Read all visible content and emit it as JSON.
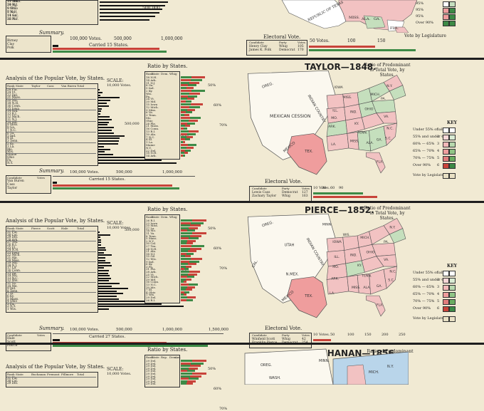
{
  "sections": [
    {
      "id": "polk",
      "heading": "",
      "state_rows": [
        "19 Md.",
        "10 N.J.",
        "9 N.C.",
        "8 Va.",
        "14 Ga.",
        "26 Pa.",
        "17 Tenn.",
        "24 Ky.",
        "9 Ohio",
        "7 N.H.",
        "11 S.C.",
        "12 N.Y."
      ],
      "scale_ticks": [
        "500,000"
      ],
      "summary_label": "Summary.",
      "summary_rows": [
        "Birney",
        "Clay",
        "Polk"
      ],
      "summary_ticks": [
        "100,000 Votes.",
        "500,000",
        "1,000,000"
      ],
      "summary_note": "Carried 15 States.",
      "electoral_label": "Electoral Vote.",
      "electoral_header": [
        "Candidate",
        "Party",
        "Votes"
      ],
      "electoral_rows": [
        [
          "Henry Clay",
          "Whig",
          "105"
        ],
        [
          "James K. Polk",
          "Democrat",
          "170"
        ]
      ],
      "electoral_ticks": [
        "50 Votes.",
        "100",
        "150"
      ],
      "key_title": "",
      "key_rows": [
        "95%",
        "95%",
        "95%",
        "Over 90%"
      ],
      "legislature_note": "Vote by Legislature",
      "map_labels": [
        "FLA.",
        "MISS.",
        "ALA.",
        "GA.",
        "REPUBLIC OF TEXAS"
      ]
    },
    {
      "id": "taylor",
      "heading": "TAYLOR—1848.",
      "ratio_heading": "Ratio of Predominant to Total Vote, by States.",
      "analysis_title": "Analysis of the Popular Vote, by States.",
      "analysis_header": [
        "Rank",
        "State",
        "Taylor",
        "Cass",
        "Van Buren",
        "Total"
      ],
      "state_rows": [
        "28 Fla.",
        "24 Vt.",
        "22 Del.",
        "21 Mass.",
        "20 Md.",
        "18 N.H.",
        "16 Conn.",
        "15 Iowa",
        "14 Ark.",
        "13 R.I.",
        "12 Mich.",
        "11 N.J.",
        "10 Ala.",
        "9 Miss.",
        "8 Ga.",
        "7 N.C.",
        "6 Va.",
        "5 Ind.",
        "4 Ill.",
        "3 Tenn.",
        "2 Ky.",
        "1 La.",
        "Mo.",
        "Wis.",
        "Maine",
        "Ohio",
        "Pa.",
        "N.Y."
      ],
      "scale_label": "SCALE:",
      "scale_unit": "10,000 Votes.",
      "scale_ticks": [
        "500,000",
        "500,000"
      ],
      "ratio_title": "Ratio by States.",
      "ratio_header": [
        "Rank",
        "State",
        "Dem.",
        "Whig"
      ],
      "ratio_ticks": [
        "50%",
        "60%",
        "70%"
      ],
      "summary_label": "Summary.",
      "summary_rows": [
        "Van Buren",
        "Cass",
        "Taylor"
      ],
      "summary_header": [
        "Candidate",
        "Votes"
      ],
      "summary_ticks": [
        "100,000 Votes.",
        "500,000",
        "1,000,000"
      ],
      "summary_note": "Carried 15 States.",
      "electoral_label": "Electoral Vote.",
      "electoral_header": [
        "Candidate",
        "Party",
        "Votes"
      ],
      "electoral_rows": [
        [
          "Lewis Cass",
          "Democrat",
          "127"
        ],
        [
          "Zachary Taylor",
          "Whig",
          "163"
        ]
      ],
      "electoral_ticks": [
        "10 Votes.",
        "30",
        "60",
        "90"
      ],
      "key_title": "KEY",
      "key_rows": [
        "Under 55% of all",
        "55% and under 60%",
        "60% — 65%",
        "65% — 70%",
        "70% — 75%",
        "Over 90%"
      ],
      "key_nums": [
        "1",
        "2",
        "3",
        "4",
        "5",
        "6"
      ],
      "legislature_note": "Vote by Legislature",
      "map_labels": [
        "OREG.",
        "IOWA",
        "MISS.",
        "MICH.",
        "ILL.",
        "IND.",
        "OHIO",
        "PA.",
        "N.Y.",
        "ALA.",
        "GA.",
        "TEX.",
        "MEXICAN CESSION",
        "INDIAN COUNTRY",
        "MEXICO",
        "FLA.",
        "ARK.",
        "MO.",
        "KY.",
        "TENN.",
        "VA.",
        "N.C.",
        "S.C.",
        "LA.",
        "MISS."
      ]
    },
    {
      "id": "pierce",
      "heading": "PIERCE—1852.",
      "ratio_heading": "Ratio of Predominant to Total Vote, by States.",
      "analysis_title": "Analysis of the Popular Vote, by States.",
      "analysis_header": [
        "Rank",
        "State",
        "Pierce",
        "Scott",
        "Hale",
        "Total"
      ],
      "state_rows": [
        "31 Fla.",
        "30 Cal.",
        "29 Del.",
        "28 Ark.",
        "27 Tex.",
        "26 R.I.",
        "25 Vt.",
        "24 N.H.",
        "23 Iowa",
        "22 Mich.",
        "21 Ala.",
        "20 Miss.",
        "19 Md.",
        "18 N.J.",
        "17 La.",
        "16 Conn.",
        "15 Ga.",
        "14 Mo.",
        "13 N.C.",
        "12 Wis.",
        "11 Va.",
        "10 Me.",
        "9 Ind.",
        "8 Tenn.",
        "7 Ill.",
        "6 Ky.",
        "5 Mass.",
        "4 Ohio",
        "3 Pa.",
        "2 N.Y.",
        "1 Wis."
      ],
      "scale_label": "SCALE:",
      "scale_unit": "10,000 Votes.",
      "scale_ticks": [
        "500,000",
        "500,000"
      ],
      "ratio_title": "Ratio by States.",
      "ratio_header": [
        "Rank",
        "State",
        "Dem.",
        "Whig"
      ],
      "ratio_ticks": [
        "50%",
        "60%",
        "70%"
      ],
      "summary_label": "Summary.",
      "summary_rows": [
        "Hale",
        "Scott",
        "Pierce"
      ],
      "summary_header": [
        "Candidate",
        "Votes"
      ],
      "summary_ticks": [
        "100,000 Votes.",
        "500,000",
        "1,000,000",
        "1,500,000"
      ],
      "summary_note": "Carried 27 States.",
      "electoral_label": "Electoral Vote.",
      "electoral_header": [
        "Candidate",
        "Party",
        "Votes"
      ],
      "electoral_rows": [
        [
          "Winfield Scott",
          "Whig",
          "42"
        ],
        [
          "Franklin Pierce",
          "Democrat",
          "254"
        ]
      ],
      "electoral_ticks": [
        "10 Votes.",
        "50",
        "100",
        "150",
        "200",
        "250"
      ],
      "key_title": "KEY",
      "key_rows": [
        "Under 55% of all",
        "55% and under 60%",
        "60% — 65%",
        "65% — 70%",
        "70% — 75%",
        "Over 90%"
      ],
      "key_nums": [
        "1",
        "2",
        "3",
        "4",
        "5",
        "6"
      ],
      "legislature_note": "Vote by Legislature",
      "map_labels": [
        "OREG.",
        "MINN.",
        "UTAH",
        "CAL.",
        "N.MEX.",
        "TEX.",
        "MEXICO",
        "INDIAN COUNTRY",
        "IOWA",
        "ILL.",
        "IND.",
        "OHIO",
        "PA.",
        "N.Y.",
        "MICH.",
        "WIS.",
        "MO.",
        "KY.",
        "TENN.",
        "ARK.",
        "MISS.",
        "ALA.",
        "GA.",
        "S.C.",
        "N.C.",
        "VA.",
        "LA.",
        "FLA."
      ]
    },
    {
      "id": "buchanan",
      "heading": "BUCHANAN—1856.",
      "ratio_heading": "Ratio of Predominant to Total Vote, by States.",
      "analysis_title": "Analysis of the Popular Vote, by States.",
      "analysis_header": [
        "Rank",
        "State",
        "Buchanan",
        "Fremont",
        "Fillmore",
        "Total"
      ],
      "state_rows": [
        "31 Fla.",
        "30 Cal.",
        "29 Del."
      ],
      "scale_label": "SCALE:",
      "scale_unit": "10,000 Votes.",
      "ratio_title": "Ratio by States.",
      "ratio_header": [
        "Rank",
        "State",
        "Rep.",
        "Dem.",
        "Am."
      ],
      "ratio_ticks": [
        "50%",
        "60%",
        "70%"
      ],
      "map_labels": [
        "OREG.",
        "WASH.",
        "MINN.",
        "MICH.",
        "N.Y."
      ]
    }
  ],
  "colors": {
    "paper": "#f1ead3",
    "whig_red": "#c8433a",
    "dem_green": "#3d8a46",
    "pink_map": "#f2c2c2",
    "green_map": "#c5dfbd",
    "blue_map": "#b9d5ea",
    "red_state": "#ef9d9d"
  },
  "chart_data": [
    {
      "type": "bar",
      "title": "Analysis of the Popular Vote, by States.",
      "categories": [
        "Fla.",
        "Vt.",
        "Del.",
        "Mass.",
        "Md.",
        "N.H.",
        "Conn.",
        "Iowa",
        "Ark.",
        "R.I.",
        "Mich.",
        "N.J.",
        "Ala.",
        "Miss.",
        "Ga.",
        "N.C.",
        "Va.",
        "Ind.",
        "Ill.",
        "Tenn.",
        "Ky.",
        "La.",
        "Mo.",
        "Wis.",
        "Maine",
        "Ohio",
        "Pa.",
        "N.Y."
      ],
      "values": [
        7,
        23,
        11,
        126,
        72,
        51,
        62,
        22,
        16,
        11,
        65,
        77,
        61,
        52,
        92,
        80,
        92,
        152,
        124,
        122,
        116,
        33,
        72,
        39,
        87,
        328,
        369,
        455
      ],
      "ylabel": "10,000 Votes."
    },
    {
      "type": "bar",
      "title": "Analysis of the Popular Vote, by States.",
      "categories": [
        "Fla.",
        "Cal.",
        "Del.",
        "Ark.",
        "Tex.",
        "R.I.",
        "Vt.",
        "N.H.",
        "Iowa",
        "Mich.",
        "Ala.",
        "Miss.",
        "Md.",
        "N.J.",
        "La.",
        "Conn.",
        "Ga.",
        "Mo.",
        "N.C.",
        "Wis.",
        "Va.",
        "Me.",
        "Ind.",
        "Tenn.",
        "Ill.",
        "Ky.",
        "Mass.",
        "Ohio",
        "Pa.",
        "N.Y.",
        "Wis."
      ],
      "values": [
        7,
        76,
        12,
        19,
        18,
        17,
        43,
        50,
        35,
        82,
        42,
        44,
        75,
        83,
        36,
        66,
        62,
        68,
        79,
        64,
        132,
        82,
        183,
        115,
        154,
        111,
        128,
        353,
        387,
        522,
        64
      ]
    }
  ]
}
